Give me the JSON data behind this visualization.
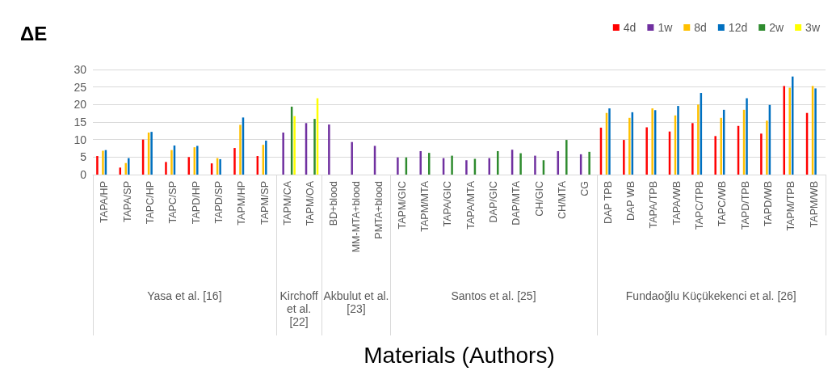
{
  "chart_data": {
    "type": "bar",
    "ylabel": "ΔE",
    "xlabel": "Materials (Authors)",
    "categories": [
      "TAPA/HP",
      "TAPA/SP",
      "TAPC/HP",
      "TAPC/SP",
      "TAPD/HP",
      "TAPD/SP",
      "TAPM/HP",
      "TAPM/SP",
      "TAPM/CA",
      "TAPM/OA",
      "BD+blood",
      "MM-MTA+blood",
      "PMTA+blood",
      "TAPM/GIC",
      "TAPM/MTA",
      "TAPA/GIC",
      "TAPA/MTA",
      "DAP/GIC",
      "DAP/MTA",
      "CH/GIC",
      "CH/MTA",
      "CG",
      "DAP TPB",
      "DAP WB",
      "TAPA/TPB",
      "TAPA/WB",
      "TAPC/TPB",
      "TAPC/WB",
      "TAPD/TPB",
      "TAPD/WB",
      "TAPM/TPB",
      "TAPM/WB"
    ],
    "series": [
      {
        "name": "4d",
        "color": "#ff0000",
        "values": [
          5.3,
          2.0,
          10.0,
          3.6,
          5.0,
          3.2,
          7.6,
          5.3,
          null,
          null,
          null,
          null,
          null,
          null,
          null,
          null,
          null,
          null,
          null,
          null,
          null,
          null,
          13.4,
          9.9,
          13.5,
          12.3,
          14.7,
          11.0,
          13.9,
          11.7,
          25.3,
          17.6
        ]
      },
      {
        "name": "1w",
        "color": "#7030a0",
        "values": [
          null,
          null,
          null,
          null,
          null,
          null,
          null,
          null,
          12.0,
          14.7,
          14.3,
          9.3,
          8.2,
          4.9,
          6.7,
          4.7,
          4.1,
          4.7,
          7.1,
          5.4,
          6.7,
          5.8,
          null,
          null,
          null,
          null,
          null,
          null,
          null,
          null,
          null,
          null
        ]
      },
      {
        "name": "8d",
        "color": "#ffc000",
        "values": [
          6.8,
          3.3,
          12.0,
          7.0,
          7.8,
          4.7,
          14.2,
          8.5,
          null,
          null,
          null,
          null,
          null,
          null,
          null,
          null,
          null,
          null,
          null,
          null,
          null,
          null,
          17.6,
          16.2,
          18.9,
          16.9,
          20.0,
          16.2,
          18.5,
          15.4,
          24.8,
          25.3
        ]
      },
      {
        "name": "12d",
        "color": "#0070c0",
        "values": [
          7.0,
          4.7,
          12.2,
          8.3,
          8.2,
          4.4,
          16.3,
          9.7,
          null,
          null,
          null,
          null,
          null,
          null,
          null,
          null,
          null,
          null,
          null,
          null,
          null,
          null,
          18.9,
          17.8,
          18.4,
          19.6,
          23.3,
          18.5,
          21.8,
          19.9,
          28.0,
          24.6
        ]
      },
      {
        "name": "2w",
        "color": "#2e8b2e",
        "values": [
          null,
          null,
          null,
          null,
          null,
          null,
          null,
          null,
          19.4,
          15.9,
          null,
          null,
          null,
          4.9,
          6.2,
          5.4,
          4.5,
          6.7,
          6.1,
          4.1,
          9.9,
          6.5,
          null,
          null,
          null,
          null,
          null,
          null,
          null,
          null,
          null,
          null
        ]
      },
      {
        "name": "3w",
        "color": "#ffff00",
        "values": [
          null,
          null,
          null,
          null,
          null,
          null,
          null,
          null,
          16.7,
          21.8,
          null,
          null,
          null,
          null,
          null,
          null,
          null,
          null,
          null,
          null,
          null,
          null,
          null,
          null,
          null,
          null,
          null,
          null,
          null,
          null,
          null,
          null
        ]
      }
    ],
    "ylim": [
      0,
      30
    ],
    "yticks": [
      0,
      5,
      10,
      15,
      20,
      25,
      30
    ],
    "grid": "y",
    "legend": "top right",
    "annotations": [
      "Yasa et al. [16]",
      "Kirchoff et al. [22]",
      "Akbulut et al. [23]",
      "Santos et al. [25]",
      "Fundaoğlu Küçükekenci et al. [26]"
    ]
  }
}
